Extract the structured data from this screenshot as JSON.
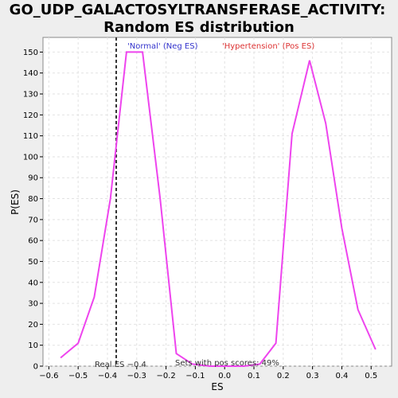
{
  "chart_data": {
    "type": "line",
    "title_line1": "GO_UDP_GALACTOSYLTRANSFERASE_ACTIVITY:",
    "title_line2": "Random ES distribution",
    "xlabel": "ES",
    "ylabel": "P(ES)",
    "xlim": [
      -0.62,
      0.57
    ],
    "ylim": [
      0,
      157
    ],
    "x_ticks": [
      -0.6,
      -0.5,
      -0.4,
      -0.3,
      -0.2,
      -0.1,
      0.0,
      0.1,
      0.2,
      0.3,
      0.4,
      0.5
    ],
    "x_tick_labels": [
      "−0.6",
      "−0.5",
      "−0.4",
      "−0.3",
      "−0.2",
      "−0.1",
      "0.0",
      "0.1",
      "0.2",
      "0.3",
      "0.4",
      "0.5"
    ],
    "y_ticks": [
      0,
      10,
      20,
      30,
      40,
      50,
      60,
      70,
      80,
      90,
      100,
      110,
      120,
      130,
      140,
      150
    ],
    "y_tick_labels": [
      "0",
      "10",
      "20",
      "30",
      "40",
      "50",
      "60",
      "70",
      "80",
      "90",
      "100",
      "110",
      "120",
      "130",
      "140",
      "150"
    ],
    "grid": true,
    "series": [
      {
        "color": "#ee44ee",
        "points": [
          [
            -0.56,
            4
          ],
          [
            -0.5,
            11
          ],
          [
            -0.445,
            33
          ],
          [
            -0.39,
            80
          ],
          [
            -0.335,
            150
          ],
          [
            -0.28,
            150
          ],
          [
            -0.22,
            80
          ],
          [
            -0.165,
            6
          ],
          [
            -0.11,
            1
          ],
          [
            -0.05,
            0
          ],
          [
            0.01,
            0
          ],
          [
            0.065,
            0
          ],
          [
            0.12,
            1
          ],
          [
            0.175,
            11
          ],
          [
            0.23,
            111
          ],
          [
            0.29,
            146
          ],
          [
            0.345,
            116
          ],
          [
            0.4,
            66
          ],
          [
            0.455,
            27
          ],
          [
            0.515,
            8
          ]
        ]
      }
    ],
    "real_es": -0.37,
    "legend_neg": "'Normal' (Neg ES)",
    "legend_pos": "'Hypertension' (Pos ES)",
    "real_es_label": "Real ES −0.4",
    "pos_scores_label": "Sets with pos scores: 49%"
  }
}
